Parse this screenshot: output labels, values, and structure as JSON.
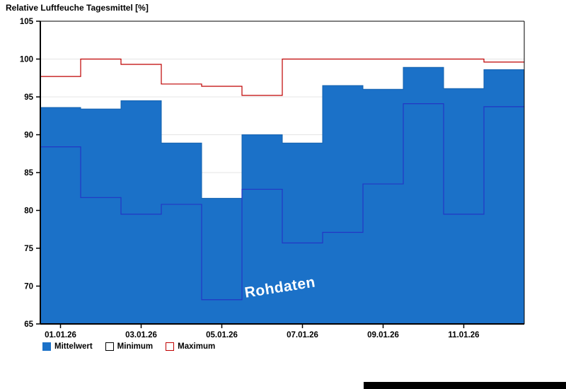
{
  "legend": {
    "items": [
      {
        "label": "Mittelwert",
        "swatch": "mean"
      },
      {
        "label": "Minimum",
        "swatch": "min"
      },
      {
        "label": "Maximum",
        "swatch": "max"
      }
    ]
  },
  "colors": {
    "mean_fill": "#1b71c8",
    "mean_edge": "#1260ae",
    "min_line": "#2336c4",
    "max_line": "#bf0000",
    "grid": "#e4e4e4",
    "axis": "#000000",
    "watermark_text": "#ffffff",
    "min_swatch_border": "#000000",
    "bottom_bar": "#000000"
  },
  "chart_data": {
    "type": "step-area",
    "title": "Relative Luftfeuche Tagesmittel [%]",
    "watermark": "Rohdaten",
    "ylim": [
      65,
      105
    ],
    "y_tick_step": 5,
    "n_days": 12,
    "grid": "horizontal",
    "legend_position": "bottom-left",
    "x_ticks": [
      {
        "day_index": 0,
        "label": "01.01.26"
      },
      {
        "day_index": 2,
        "label": "03.01.26"
      },
      {
        "day_index": 4,
        "label": "05.01.26"
      },
      {
        "day_index": 6,
        "label": "07.01.26"
      },
      {
        "day_index": 8,
        "label": "09.01.26"
      },
      {
        "day_index": 10,
        "label": "11.01.26"
      }
    ],
    "series": [
      {
        "name": "Mittelwert",
        "style": "filled-step",
        "values": [
          93.6,
          93.4,
          94.5,
          88.9,
          81.6,
          90.0,
          88.9,
          96.5,
          96.0,
          98.9,
          96.1,
          98.6
        ]
      },
      {
        "name": "Minimum",
        "style": "step-line",
        "values": [
          88.4,
          81.7,
          79.5,
          80.8,
          68.2,
          82.8,
          75.7,
          77.1,
          83.5,
          94.1,
          79.5,
          93.7
        ]
      },
      {
        "name": "Maximum",
        "style": "step-line",
        "values": [
          97.7,
          100.0,
          99.3,
          96.7,
          96.4,
          95.2,
          100.0,
          100.0,
          100.0,
          100.0,
          100.0,
          99.6
        ]
      }
    ]
  }
}
